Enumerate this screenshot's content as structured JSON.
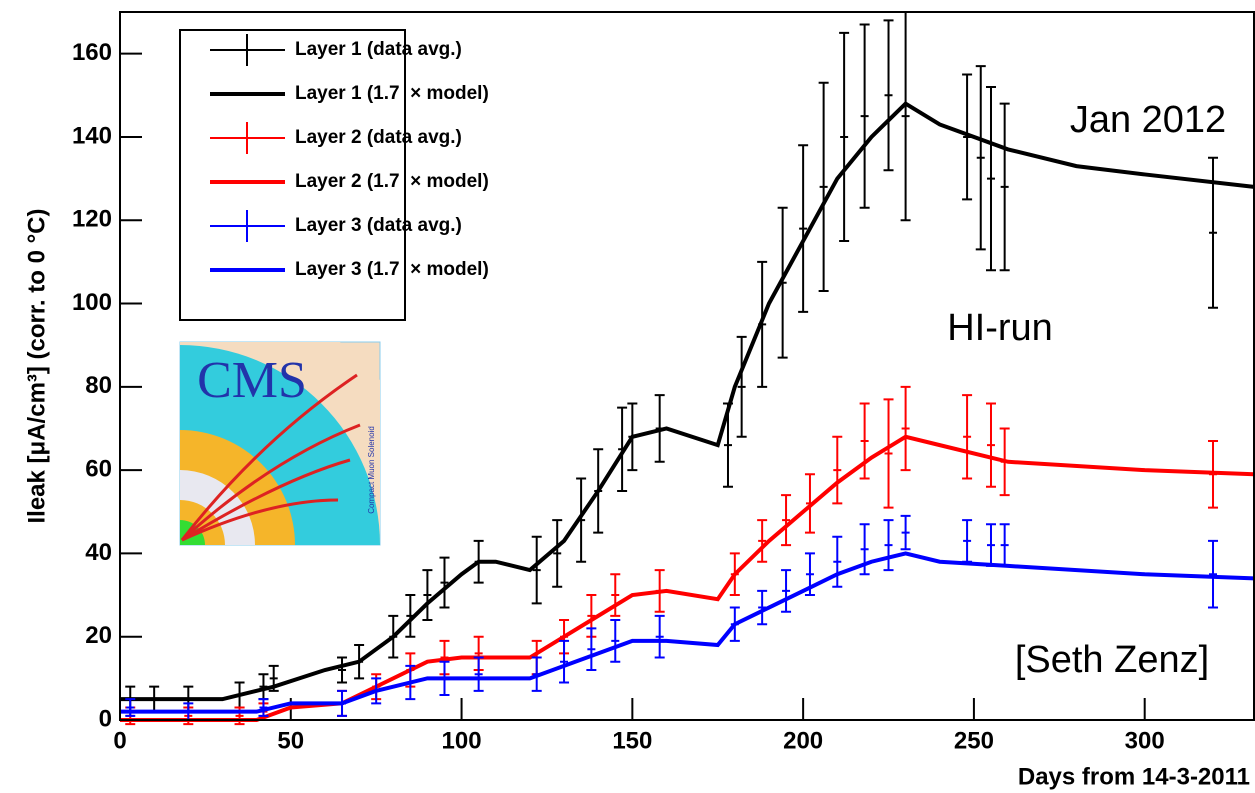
{
  "chart_data": {
    "type": "line",
    "y_label": "Ileak [μA/cm³] (corr. to 0 °C)",
    "x_label": "Days from 14-3-2011",
    "xlim": [
      0,
      332
    ],
    "ylim": [
      0,
      170
    ],
    "xticks": [
      0,
      50,
      100,
      150,
      200,
      250,
      300
    ],
    "yticks": [
      0,
      20,
      40,
      60,
      80,
      100,
      120,
      140,
      160
    ],
    "annotations": [
      "Jan 2012",
      "HI-run",
      "[Seth Zenz]"
    ],
    "logo_text": "CMS",
    "logo_subtext": "Compact Muon Solenoid",
    "series": [
      {
        "name": "Layer 1 (data avg.)",
        "color": "#000000",
        "style": "data",
        "x": [
          3,
          10,
          20,
          35,
          42,
          45,
          65,
          70,
          80,
          85,
          90,
          95,
          105,
          122,
          128,
          135,
          140,
          147,
          150,
          158,
          178,
          182,
          188,
          194,
          200,
          206,
          212,
          218,
          225,
          230,
          248,
          252,
          255,
          259,
          320
        ],
        "values": [
          5,
          5,
          5,
          6,
          8,
          10,
          12,
          14,
          20,
          25,
          30,
          33,
          38,
          36,
          40,
          48,
          55,
          65,
          68,
          70,
          66,
          80,
          95,
          105,
          118,
          128,
          140,
          145,
          150,
          145,
          140,
          135,
          130,
          128,
          117
        ],
        "errors": [
          3,
          3,
          3,
          3,
          3,
          3,
          3,
          4,
          5,
          5,
          6,
          6,
          5,
          8,
          8,
          10,
          10,
          10,
          8,
          8,
          10,
          12,
          15,
          18,
          20,
          25,
          25,
          22,
          18,
          25,
          15,
          22,
          22,
          20,
          18
        ]
      },
      {
        "name": "Layer 1 (1.7  × model)",
        "color": "#000000",
        "style": "model",
        "x": [
          0,
          30,
          45,
          60,
          70,
          80,
          90,
          100,
          105,
          110,
          120,
          130,
          140,
          150,
          160,
          175,
          180,
          190,
          200,
          210,
          220,
          230,
          240,
          260,
          280,
          300,
          332
        ],
        "values": [
          5,
          5,
          8,
          12,
          14,
          20,
          28,
          35,
          38,
          38,
          36,
          43,
          55,
          68,
          70,
          66,
          80,
          100,
          115,
          130,
          140,
          148,
          143,
          137,
          133,
          131,
          128
        ]
      },
      {
        "name": "Layer 2 (data avg.)",
        "color": "#ff0000",
        "style": "data",
        "x": [
          3,
          20,
          35,
          42,
          65,
          75,
          85,
          95,
          105,
          122,
          130,
          138,
          145,
          158,
          180,
          188,
          195,
          202,
          210,
          218,
          225,
          230,
          248,
          255,
          259,
          320
        ],
        "values": [
          1,
          1,
          1,
          2,
          4,
          8,
          12,
          15,
          16,
          15,
          20,
          25,
          30,
          31,
          35,
          43,
          48,
          52,
          60,
          67,
          64,
          70,
          68,
          66,
          62,
          59
        ],
        "errors": [
          2,
          2,
          2,
          2,
          3,
          3,
          4,
          4,
          4,
          4,
          4,
          5,
          5,
          5,
          5,
          5,
          6,
          7,
          8,
          9,
          13,
          10,
          10,
          10,
          8,
          8
        ]
      },
      {
        "name": "Layer 2 (1.7  × model)",
        "color": "#ff0000",
        "style": "model",
        "x": [
          0,
          40,
          50,
          65,
          75,
          90,
          100,
          120,
          130,
          140,
          150,
          160,
          175,
          180,
          190,
          200,
          210,
          220,
          230,
          240,
          260,
          300,
          332
        ],
        "values": [
          0,
          0,
          3,
          4,
          8,
          14,
          15,
          15,
          20,
          25,
          30,
          31,
          29,
          35,
          43,
          50,
          57,
          63,
          68,
          66,
          62,
          60,
          59
        ]
      },
      {
        "name": "Layer 3 (data avg.)",
        "color": "#0000ff",
        "style": "data",
        "x": [
          3,
          20,
          42,
          65,
          75,
          85,
          95,
          105,
          122,
          130,
          138,
          145,
          158,
          180,
          188,
          195,
          202,
          210,
          218,
          225,
          230,
          248,
          255,
          259,
          320
        ],
        "values": [
          3,
          2,
          3,
          4,
          7,
          9,
          10,
          11,
          11,
          14,
          17,
          19,
          20,
          23,
          27,
          31,
          35,
          38,
          41,
          42,
          45,
          43,
          42,
          42,
          35
        ],
        "errors": [
          2,
          2,
          2,
          3,
          3,
          4,
          4,
          4,
          4,
          5,
          5,
          5,
          5,
          4,
          4,
          5,
          5,
          6,
          6,
          6,
          4,
          5,
          5,
          5,
          8
        ]
      },
      {
        "name": "Layer 3 (1.7  × model)",
        "color": "#0000ff",
        "style": "model",
        "x": [
          0,
          40,
          50,
          65,
          75,
          90,
          110,
          120,
          130,
          140,
          150,
          160,
          175,
          180,
          190,
          200,
          210,
          220,
          230,
          240,
          260,
          300,
          332
        ],
        "values": [
          2,
          2,
          4,
          4,
          7,
          10,
          10,
          10,
          13,
          16,
          19,
          19,
          18,
          23,
          27,
          31,
          35,
          38,
          40,
          38,
          37,
          35,
          34
        ]
      }
    ]
  }
}
